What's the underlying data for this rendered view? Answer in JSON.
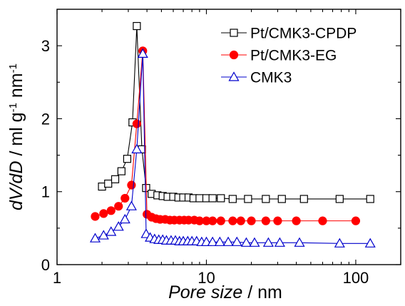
{
  "chart_data": {
    "type": "line",
    "xlabel": {
      "italic": "Pore size",
      "rest": " / nm"
    },
    "ylabel": {
      "italic": "dV/dD",
      "rest": " / ml g",
      "sup1": "-1",
      "mid": " nm",
      "sup2": "-1"
    },
    "xscale": "log",
    "xlim": [
      1,
      200
    ],
    "ylim": [
      0,
      3.5
    ],
    "x_ticks": [
      1,
      10,
      100
    ],
    "x_tick_labels": [
      "1",
      "10",
      "100"
    ],
    "y_ticks": [
      0,
      1,
      2,
      3
    ],
    "y_tick_labels": [
      "0",
      "1",
      "2",
      "3"
    ],
    "legend_position": "top-right",
    "series": [
      {
        "name": "Pt/CMK3-CPDP",
        "color": "#000000",
        "marker": "square-open",
        "x": [
          2.0,
          2.2,
          2.45,
          2.7,
          2.95,
          3.2,
          3.42,
          3.7,
          3.95,
          4.3,
          4.7,
          5.1,
          5.5,
          6.0,
          6.5,
          7.0,
          7.6,
          8.2,
          9.0,
          10.0,
          11.0,
          12.5,
          15.0,
          19.0,
          25.0,
          32.0,
          45.0,
          78.0,
          125.0
        ],
        "y": [
          1.07,
          1.11,
          1.17,
          1.28,
          1.45,
          1.95,
          3.27,
          1.58,
          1.05,
          0.97,
          0.95,
          0.94,
          0.93,
          0.93,
          0.92,
          0.92,
          0.92,
          0.91,
          0.91,
          0.91,
          0.91,
          0.91,
          0.9,
          0.9,
          0.9,
          0.9,
          0.9,
          0.9,
          0.9
        ]
      },
      {
        "name": "Pt/CMK3-EG",
        "color": "#ff0000",
        "marker": "circle-filled",
        "x": [
          1.8,
          2.05,
          2.3,
          2.58,
          2.85,
          3.15,
          3.42,
          3.75,
          4.0,
          4.3,
          4.6,
          4.9,
          5.3,
          5.7,
          6.1,
          6.6,
          7.1,
          7.6,
          8.3,
          9.0,
          10.0,
          11.0,
          12.5,
          15.0,
          17.0,
          20.0,
          25.0,
          30.0,
          40.0,
          60.0,
          100.0
        ],
        "y": [
          0.66,
          0.7,
          0.74,
          0.8,
          0.91,
          1.09,
          1.93,
          2.93,
          0.69,
          0.65,
          0.63,
          0.62,
          0.62,
          0.61,
          0.61,
          0.61,
          0.61,
          0.61,
          0.61,
          0.6,
          0.6,
          0.6,
          0.6,
          0.6,
          0.6,
          0.6,
          0.6,
          0.6,
          0.6,
          0.6,
          0.6
        ]
      },
      {
        "name": "CMK3",
        "color": "#0000cc",
        "marker": "triangle-open",
        "x": [
          1.8,
          2.05,
          2.3,
          2.58,
          2.85,
          3.15,
          3.42,
          3.75,
          3.95,
          4.2,
          4.5,
          4.8,
          5.1,
          5.4,
          5.8,
          6.2,
          6.6,
          7.0,
          7.5,
          8.0,
          8.6,
          9.3,
          10.0,
          11.0,
          12.3,
          14.0,
          16.0,
          18.5,
          21.0,
          26.0,
          31.0,
          42.0,
          78.0,
          125.0
        ],
        "y": [
          0.36,
          0.4,
          0.45,
          0.52,
          0.62,
          0.8,
          1.58,
          2.89,
          0.42,
          0.37,
          0.35,
          0.34,
          0.34,
          0.33,
          0.33,
          0.33,
          0.32,
          0.32,
          0.32,
          0.32,
          0.32,
          0.31,
          0.31,
          0.31,
          0.31,
          0.31,
          0.31,
          0.3,
          0.3,
          0.3,
          0.3,
          0.3,
          0.29,
          0.29
        ]
      }
    ]
  }
}
